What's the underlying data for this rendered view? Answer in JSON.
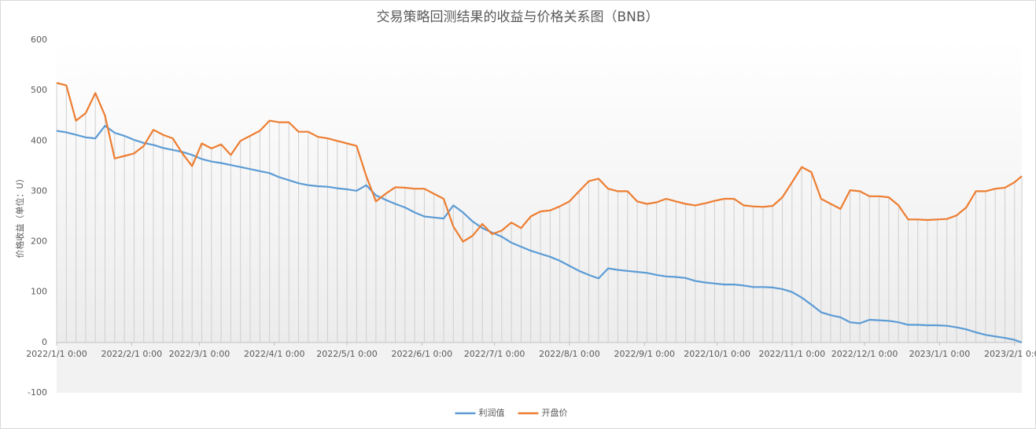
{
  "chart_data": {
    "type": "line",
    "title": "交易策略回测结果的收益与价格关系图（BNB）",
    "y_label": "价格收益（单位：U）",
    "x": [
      "2022/1/1 0:00",
      "2022/1/5 0:00",
      "2022/1/9 0:00",
      "2022/1/13 0:00",
      "2022/1/17 0:00",
      "2022/1/21 0:00",
      "2022/1/25 0:00",
      "2022/1/29 0:00",
      "2022/2/2 0:00",
      "2022/2/6 0:00",
      "2022/2/10 0:00",
      "2022/2/14 0:00",
      "2022/2/18 0:00",
      "2022/2/22 0:00",
      "2022/2/26 0:00",
      "2022/3/2 0:00",
      "2022/3/6 0:00",
      "2022/3/10 0:00",
      "2022/3/14 0:00",
      "2022/3/18 0:00",
      "2022/3/22 0:00",
      "2022/3/26 0:00",
      "2022/3/30 0:00",
      "2022/4/3 0:00",
      "2022/4/7 0:00",
      "2022/4/11 0:00",
      "2022/4/15 0:00",
      "2022/4/19 0:00",
      "2022/4/23 0:00",
      "2022/4/27 0:00",
      "2022/5/1 0:00",
      "2022/5/5 0:00",
      "2022/5/9 0:00",
      "2022/5/13 0:00",
      "2022/5/17 0:00",
      "2022/5/21 0:00",
      "2022/5/25 0:00",
      "2022/5/29 0:00",
      "2022/6/2 0:00",
      "2022/6/6 0:00",
      "2022/6/10 0:00",
      "2022/6/14 0:00",
      "2022/6/18 0:00",
      "2022/6/22 0:00",
      "2022/6/26 0:00",
      "2022/6/30 0:00",
      "2022/7/4 0:00",
      "2022/7/8 0:00",
      "2022/7/12 0:00",
      "2022/7/16 0:00",
      "2022/7/20 0:00",
      "2022/7/24 0:00",
      "2022/7/28 0:00",
      "2022/8/1 0:00",
      "2022/8/5 0:00",
      "2022/8/9 0:00",
      "2022/8/13 0:00",
      "2022/8/17 0:00",
      "2022/8/21 0:00",
      "2022/8/25 0:00",
      "2022/8/29 0:00",
      "2022/9/2 0:00",
      "2022/9/6 0:00",
      "2022/9/10 0:00",
      "2022/9/14 0:00",
      "2022/9/18 0:00",
      "2022/9/22 0:00",
      "2022/9/26 0:00",
      "2022/9/30 0:00",
      "2022/10/4 0:00",
      "2022/10/8 0:00",
      "2022/10/12 0:00",
      "2022/10/16 0:00",
      "2022/10/20 0:00",
      "2022/10/24 0:00",
      "2022/10/28 0:00",
      "2022/11/1 0:00",
      "2022/11/5 0:00",
      "2022/11/9 0:00",
      "2022/11/13 0:00",
      "2022/11/17 0:00",
      "2022/11/21 0:00",
      "2022/11/25 0:00",
      "2022/11/29 0:00",
      "2022/12/3 0:00",
      "2022/12/7 0:00",
      "2022/12/11 0:00",
      "2022/12/15 0:00",
      "2022/12/19 0:00",
      "2022/12/23 0:00",
      "2022/12/27 0:00",
      "2022/12/31 0:00",
      "2023/1/4 0:00",
      "2023/1/8 0:00",
      "2023/1/12 0:00",
      "2023/1/16 0:00",
      "2023/1/20 0:00",
      "2023/1/24 0:00",
      "2023/1/28 0:00",
      "2023/2/1 0:00",
      "2023/2/4 0:00"
    ],
    "series": [
      {
        "name": "利润值",
        "color": "#5b9bd5",
        "values": [
          420,
          417,
          412,
          407,
          405,
          430,
          416,
          410,
          402,
          396,
          392,
          386,
          382,
          378,
          372,
          364,
          359,
          356,
          352,
          348,
          344,
          340,
          336,
          328,
          322,
          316,
          312,
          310,
          309,
          306,
          304,
          301,
          312,
          292,
          283,
          275,
          268,
          258,
          250,
          248,
          246,
          272,
          258,
          240,
          227,
          218,
          210,
          198,
          190,
          182,
          176,
          170,
          162,
          152,
          142,
          134,
          127,
          147,
          144,
          142,
          140,
          138,
          134,
          131,
          130,
          128,
          122,
          119,
          117,
          115,
          115,
          113,
          110,
          110,
          109,
          106,
          100,
          89,
          75,
          60,
          54,
          50,
          40,
          38,
          45,
          44,
          43,
          40,
          35,
          35,
          34,
          34,
          33,
          30,
          26,
          20,
          15,
          12,
          9,
          5,
          0
        ]
      },
      {
        "name": "开盘价",
        "color": "#ed7d31",
        "values": [
          515,
          510,
          440,
          455,
          495,
          450,
          365,
          370,
          375,
          390,
          422,
          412,
          405,
          375,
          350,
          395,
          385,
          393,
          372,
          400,
          410,
          420,
          440,
          437,
          437,
          418,
          418,
          408,
          405,
          400,
          395,
          390,
          330,
          280,
          295,
          308,
          307,
          305,
          305,
          295,
          285,
          230,
          200,
          212,
          235,
          215,
          222,
          238,
          227,
          250,
          260,
          262,
          270,
          280,
          300,
          320,
          325,
          305,
          300,
          300,
          280,
          275,
          278,
          285,
          280,
          275,
          272,
          276,
          281,
          285,
          285,
          272,
          270,
          269,
          271,
          288,
          318,
          348,
          338,
          285,
          275,
          265,
          302,
          300,
          290,
          290,
          288,
          272,
          244,
          244,
          243,
          244,
          245,
          252,
          268,
          300,
          300,
          305,
          307,
          318,
          330
        ]
      }
    ],
    "xlim": [
      "2022/1/1 0:00",
      "2023/2/4 0:00"
    ],
    "xticks": [
      "2022/1/1 0:00",
      "2022/2/1 0:00",
      "2022/3/1 0:00",
      "2022/4/1 0:00",
      "2022/5/1 0:00",
      "2022/6/1 0:00",
      "2022/7/1 0:00",
      "2022/8/1 0:00",
      "2022/9/1 0:00",
      "2022/10/1 0:00",
      "2022/11/1 0:00",
      "2022/12/1 0:00",
      "2023/1/1 0:00",
      "2023/2/1 0:00"
    ],
    "ylim": [
      -100,
      600
    ],
    "yticks": [
      -100,
      0,
      100,
      200,
      300,
      400,
      500,
      600
    ],
    "drop_lines": true,
    "legend": "bottom"
  }
}
